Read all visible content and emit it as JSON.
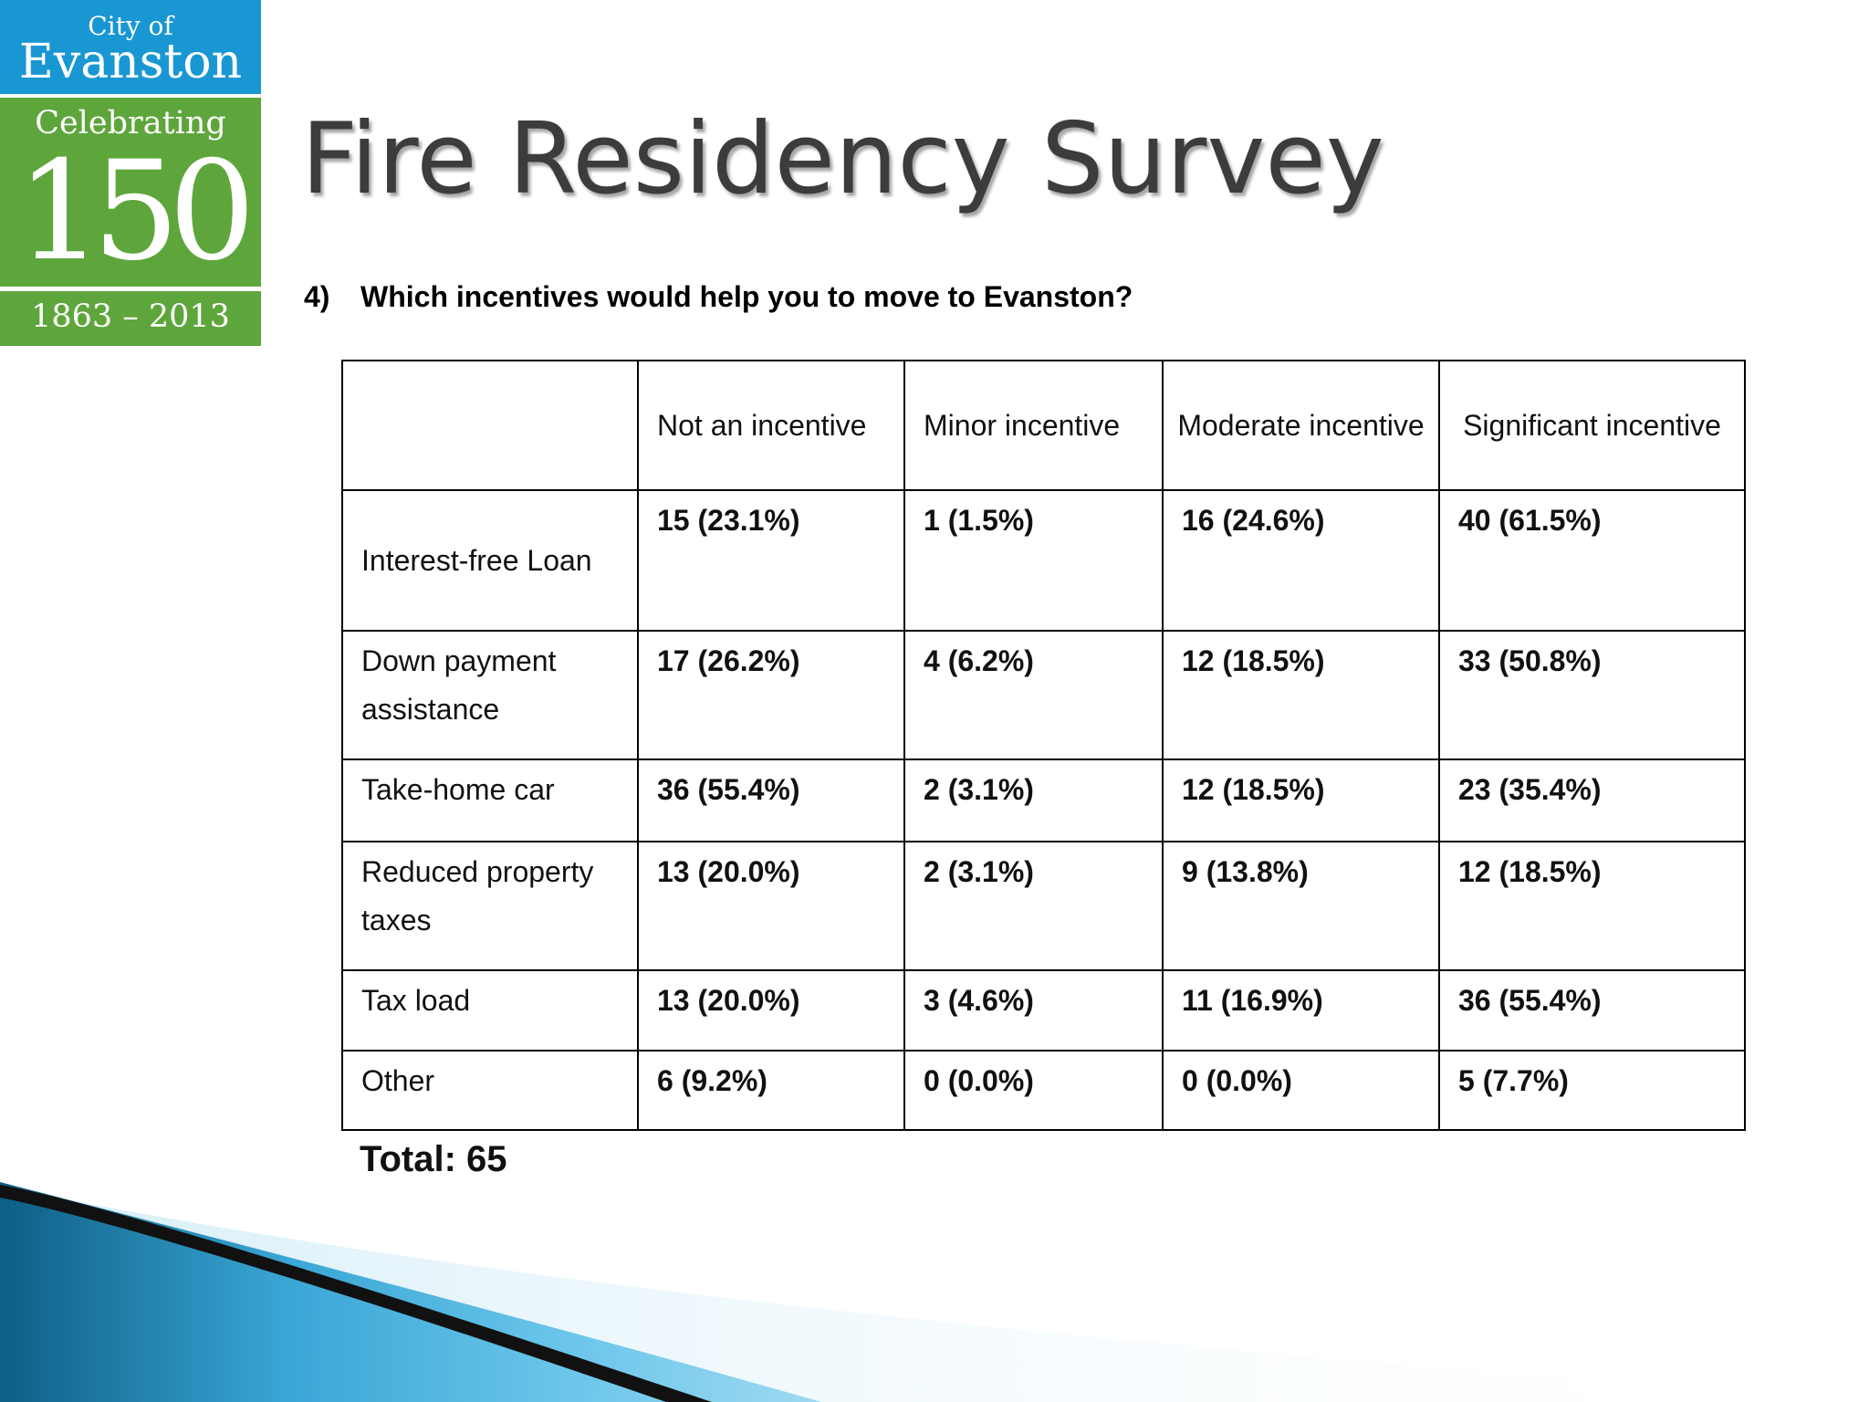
{
  "logo": {
    "city_of": "City of",
    "city_name": "Evanston",
    "celebrating": "Celebrating",
    "number": "150",
    "years": "1863 – 2013",
    "colors": {
      "top": "#1997d3",
      "bottom": "#5ea63c"
    }
  },
  "title": "Fire Residency Survey",
  "question": {
    "number": "4)",
    "text": "Which incentives would help you to move to Evanston?"
  },
  "table": {
    "headers": [
      "",
      "Not an incentive",
      "Minor incentive",
      "Moderate incentive",
      "Significant incentive"
    ],
    "rows": [
      {
        "label": "Interest-free Loan",
        "values": [
          "15 (23.1%)",
          "1 (1.5%)",
          "16 (24.6%)",
          "40 (61.5%)"
        ]
      },
      {
        "label": "Down payment assistance",
        "values": [
          "17 (26.2%)",
          "4 (6.2%)",
          "12 (18.5%)",
          "33 (50.8%)"
        ]
      },
      {
        "label": "Take-home car",
        "values": [
          "36 (55.4%)",
          "2 (3.1%)",
          "12 (18.5%)",
          "23 (35.4%)"
        ]
      },
      {
        "label": "Reduced property taxes",
        "values": [
          "13 (20.0%)",
          "2 (3.1%)",
          "9 (13.8%)",
          "12 (18.5%)"
        ]
      },
      {
        "label": "Tax load",
        "values": [
          "13 (20.0%)",
          "3 (4.6%)",
          "11 (16.9%)",
          "36 (55.4%)"
        ]
      },
      {
        "label": "Other",
        "values": [
          "6 (9.2%)",
          "0 (0.0%)",
          "0 (0.0%)",
          "5 (7.7%)"
        ]
      }
    ]
  },
  "total": "Total: 65",
  "colors": {
    "title": "#3c3c3c",
    "swoosh_light": "#5bc0e8",
    "swoosh_dark": "#0d5f86"
  }
}
